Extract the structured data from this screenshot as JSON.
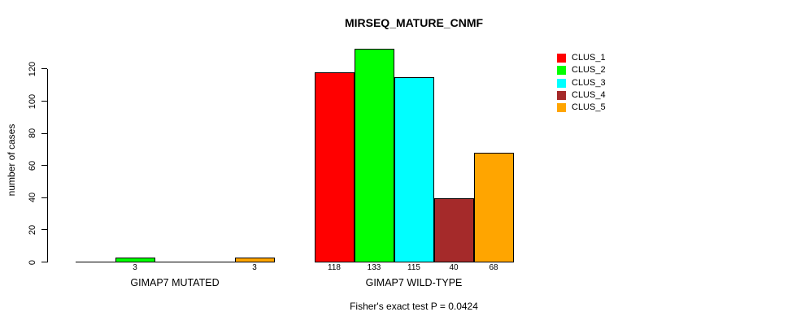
{
  "chart_data": {
    "type": "bar",
    "title": "MIRSEQ_MATURE_CNMF",
    "ylabel": "number of cases",
    "xlabel": "",
    "categories": [
      "GIMAP7 MUTATED",
      "GIMAP7 WILD-TYPE"
    ],
    "series": [
      {
        "name": "CLUS_1",
        "color": "#FF0000",
        "values": [
          0,
          118
        ]
      },
      {
        "name": "CLUS_2",
        "color": "#00FF00",
        "values": [
          3,
          133
        ]
      },
      {
        "name": "CLUS_3",
        "color": "#00FFFF",
        "values": [
          0,
          115
        ]
      },
      {
        "name": "CLUS_4",
        "color": "#A52A2A",
        "values": [
          0,
          40
        ]
      },
      {
        "name": "CLUS_5",
        "color": "#FFA500",
        "values": [
          3,
          68
        ]
      }
    ],
    "bar_value_labels": true,
    "show_zero_value_labels": false,
    "yticks": [
      0,
      20,
      40,
      60,
      80,
      100,
      120
    ],
    "ylim": [
      0,
      135
    ],
    "grid": false,
    "legend_position": "top-right",
    "annotation": "Fisher's exact test P = 0.0424"
  }
}
